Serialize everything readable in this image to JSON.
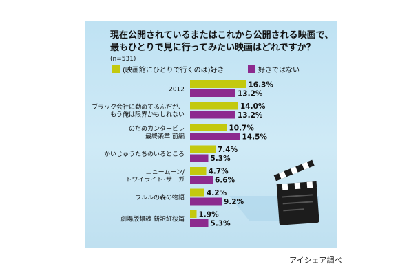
{
  "chart_data": {
    "type": "bar",
    "orientation": "horizontal",
    "title_lines": [
      "現在公開されているまたはこれから公開される映画で、",
      "最もひとりで見に行ってみたい映画はどれですか？"
    ],
    "note": "(n=531)",
    "value_suffix": "%",
    "legend_placement": "top",
    "categories": [
      [
        "2012"
      ],
      [
        "ブラック会社に勤めてるんだが、",
        "もう俺は限界かもしれない"
      ],
      [
        "のだめカンタービレ",
        "最終楽章 前編"
      ],
      [
        "かいじゅうたちのいるところ"
      ],
      [
        "ニュームーン/",
        "トワイライト･サーガ"
      ],
      [
        "ウルルの森の物語"
      ],
      [
        "劇場版銀魂 新訳紅桜篇"
      ]
    ],
    "series": [
      {
        "name": "(映画館にひとりで行くのは)好き",
        "color": "#c3c90e",
        "values": [
          16.3,
          14.0,
          10.7,
          7.4,
          4.7,
          4.2,
          1.9
        ]
      },
      {
        "name": "好きではない",
        "color": "#8c2a8e",
        "values": [
          13.2,
          13.2,
          14.5,
          5.3,
          6.6,
          9.2,
          5.3
        ]
      }
    ],
    "xlim": [
      0,
      20
    ],
    "grid": false
  },
  "credit": "アイシェア調べ"
}
